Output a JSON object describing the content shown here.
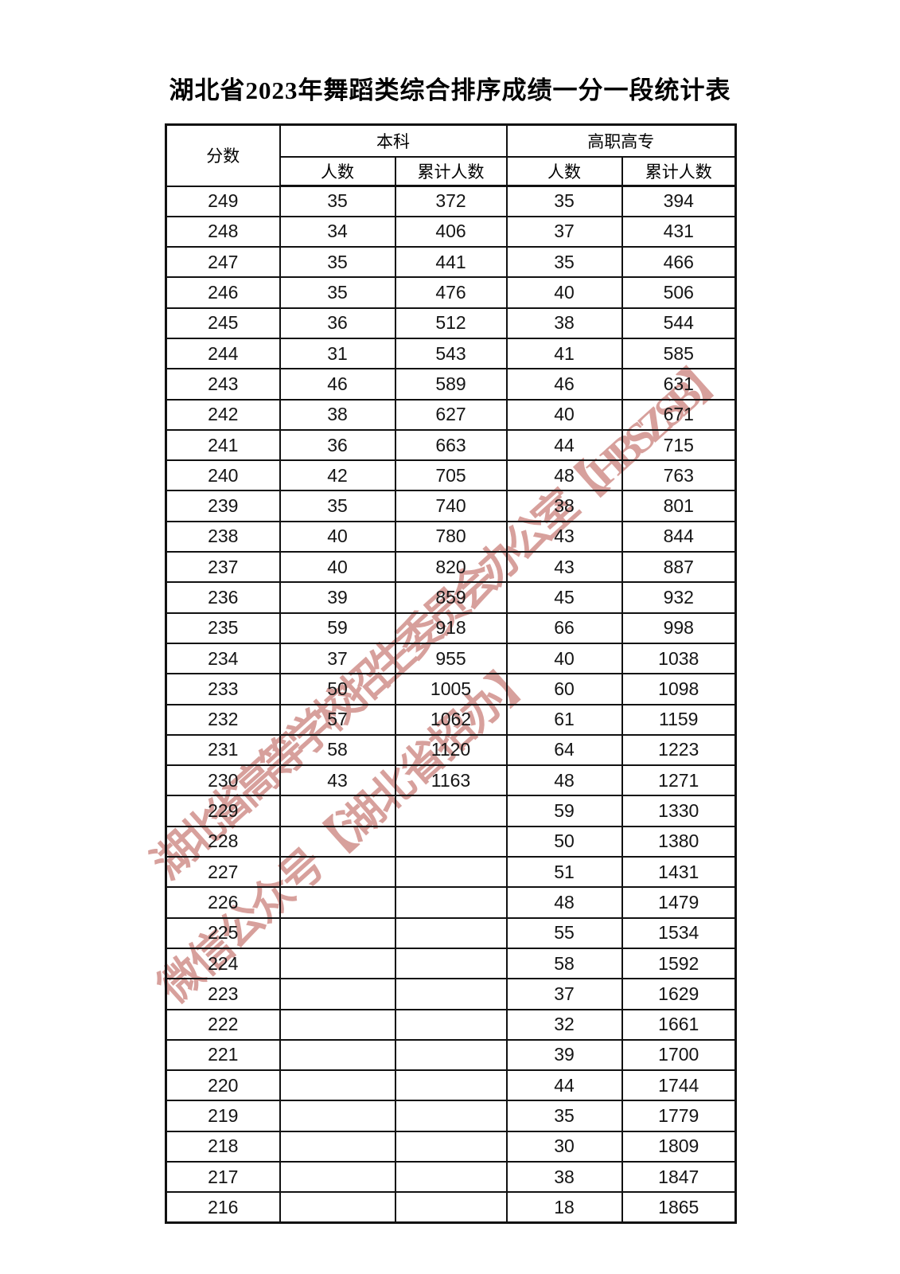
{
  "title": "湖北省2023年舞蹈类综合排序成绩一分一段统计表",
  "table": {
    "col_score": "分数",
    "group_undergraduate": "本科",
    "group_vocational": "高职高专",
    "col_count": "人数",
    "col_cumulative": "累计人数",
    "rows": [
      [
        "249",
        "35",
        "372",
        "35",
        "394"
      ],
      [
        "248",
        "34",
        "406",
        "37",
        "431"
      ],
      [
        "247",
        "35",
        "441",
        "35",
        "466"
      ],
      [
        "246",
        "35",
        "476",
        "40",
        "506"
      ],
      [
        "245",
        "36",
        "512",
        "38",
        "544"
      ],
      [
        "244",
        "31",
        "543",
        "41",
        "585"
      ],
      [
        "243",
        "46",
        "589",
        "46",
        "631"
      ],
      [
        "242",
        "38",
        "627",
        "40",
        "671"
      ],
      [
        "241",
        "36",
        "663",
        "44",
        "715"
      ],
      [
        "240",
        "42",
        "705",
        "48",
        "763"
      ],
      [
        "239",
        "35",
        "740",
        "38",
        "801"
      ],
      [
        "238",
        "40",
        "780",
        "43",
        "844"
      ],
      [
        "237",
        "40",
        "820",
        "43",
        "887"
      ],
      [
        "236",
        "39",
        "859",
        "45",
        "932"
      ],
      [
        "235",
        "59",
        "918",
        "66",
        "998"
      ],
      [
        "234",
        "37",
        "955",
        "40",
        "1038"
      ],
      [
        "233",
        "50",
        "1005",
        "60",
        "1098"
      ],
      [
        "232",
        "57",
        "1062",
        "61",
        "1159"
      ],
      [
        "231",
        "58",
        "1120",
        "64",
        "1223"
      ],
      [
        "230",
        "43",
        "1163",
        "48",
        "1271"
      ],
      [
        "229",
        "",
        "",
        "59",
        "1330"
      ],
      [
        "228",
        "",
        "",
        "50",
        "1380"
      ],
      [
        "227",
        "",
        "",
        "51",
        "1431"
      ],
      [
        "226",
        "",
        "",
        "48",
        "1479"
      ],
      [
        "225",
        "",
        "",
        "55",
        "1534"
      ],
      [
        "224",
        "",
        "",
        "58",
        "1592"
      ],
      [
        "223",
        "",
        "",
        "37",
        "1629"
      ],
      [
        "222",
        "",
        "",
        "32",
        "1661"
      ],
      [
        "221",
        "",
        "",
        "39",
        "1700"
      ],
      [
        "220",
        "",
        "",
        "44",
        "1744"
      ],
      [
        "219",
        "",
        "",
        "35",
        "1779"
      ],
      [
        "218",
        "",
        "",
        "30",
        "1809"
      ],
      [
        "217",
        "",
        "",
        "38",
        "1847"
      ],
      [
        "216",
        "",
        "",
        "18",
        "1865"
      ]
    ]
  },
  "watermark": {
    "line1": "湖北省高等学校招生委员会办公室【HBSZSB】",
    "line2": "微信公众号【湖北省招办】",
    "color": "#b0433b"
  },
  "colors": {
    "background": "#ffffff",
    "border": "#111111",
    "text": "#151515"
  }
}
